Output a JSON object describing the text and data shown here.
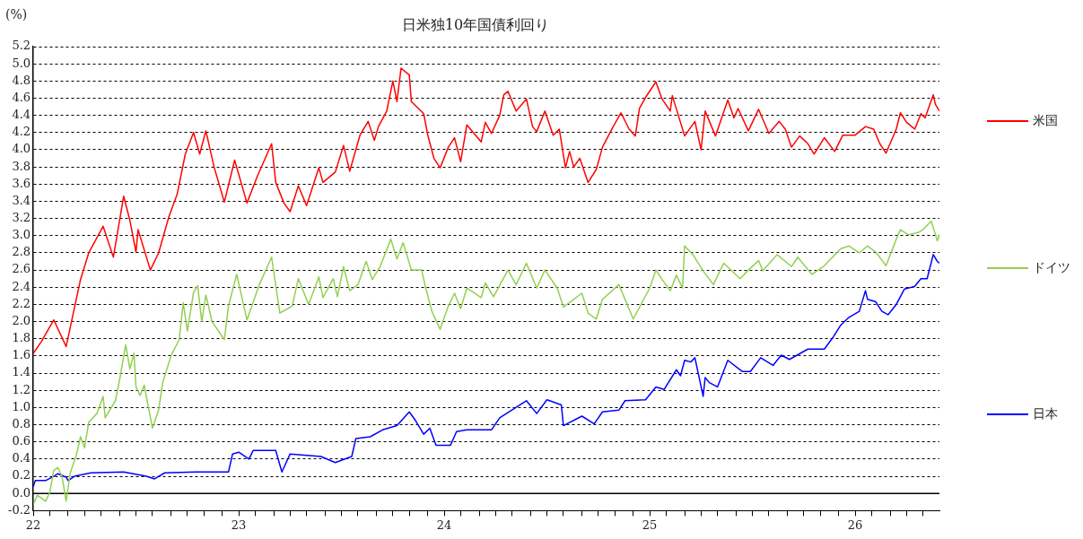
{
  "chart_data": {
    "type": "line",
    "title": "日米独10年国債利回り",
    "ylabel": "(%)",
    "legend": "right",
    "grid": "y",
    "marker": "none",
    "line_style": "solid",
    "xlim": [
      22,
      26.41
    ],
    "xticks": [
      22,
      {
        "value": 22.08,
        "label": null
      },
      {
        "value": 22.17,
        "label": null
      },
      {
        "value": 22.25,
        "label": null
      },
      {
        "value": 22.33,
        "label": null
      },
      {
        "value": 22.42,
        "label": null
      },
      {
        "value": 22.5,
        "label": null
      },
      {
        "value": 22.58,
        "label": null
      },
      {
        "value": 22.67,
        "label": null
      },
      {
        "value": 22.75,
        "label": null
      },
      {
        "value": 22.83,
        "label": null
      },
      {
        "value": 22.92,
        "label": null
      },
      23,
      {
        "value": 23.08,
        "label": null
      },
      {
        "value": 23.17,
        "label": null
      },
      {
        "value": 23.25,
        "label": null
      },
      {
        "value": 23.33,
        "label": null
      },
      {
        "value": 23.42,
        "label": null
      },
      {
        "value": 23.5,
        "label": null
      },
      {
        "value": 23.58,
        "label": null
      },
      {
        "value": 23.67,
        "label": null
      },
      {
        "value": 23.75,
        "label": null
      },
      {
        "value": 23.83,
        "label": null
      },
      {
        "value": 23.92,
        "label": null
      },
      24,
      {
        "value": 24.08,
        "label": null
      },
      {
        "value": 24.17,
        "label": null
      },
      {
        "value": 24.25,
        "label": null
      },
      {
        "value": 24.33,
        "label": null
      },
      {
        "value": 24.42,
        "label": null
      },
      {
        "value": 24.5,
        "label": null
      },
      {
        "value": 24.58,
        "label": null
      },
      {
        "value": 24.67,
        "label": null
      },
      {
        "value": 24.75,
        "label": null
      },
      {
        "value": 24.83,
        "label": null
      },
      {
        "value": 24.92,
        "label": null
      },
      25,
      {
        "value": 25.08,
        "label": null
      },
      {
        "value": 25.17,
        "label": null
      },
      {
        "value": 25.25,
        "label": null
      },
      {
        "value": 25.33,
        "label": null
      },
      {
        "value": 25.42,
        "label": null
      },
      {
        "value": 25.5,
        "label": null
      },
      {
        "value": 25.58,
        "label": null
      },
      {
        "value": 25.67,
        "label": null
      },
      {
        "value": 25.75,
        "label": null
      },
      {
        "value": 25.83,
        "label": null
      },
      {
        "value": 25.92,
        "label": null
      },
      26,
      {
        "value": 26.08,
        "label": null
      },
      {
        "value": 26.17,
        "label": null
      },
      {
        "value": 26.25,
        "label": null
      },
      {
        "value": 26.33,
        "label": null
      }
    ],
    "ylim": [
      -0.2,
      5.2
    ],
    "yticks": [
      -0.2,
      {
        "value": 0,
        "label": "0.0"
      },
      0.2,
      0.4,
      0.6,
      0.8,
      {
        "value": 1,
        "label": "1.0"
      },
      1.2,
      1.4,
      1.6,
      1.8,
      {
        "value": 2,
        "label": "2.0"
      },
      2.2,
      2.4,
      2.6,
      2.8,
      {
        "value": 3,
        "label": "3.0"
      },
      3.2,
      3.4,
      3.6,
      3.8,
      {
        "value": 4,
        "label": "4.0"
      },
      4.2,
      4.4,
      4.6,
      4.8,
      {
        "value": 5,
        "label": "5.0"
      },
      5.2
    ],
    "ref_lines": [
      {
        "axis": "y",
        "value": 0,
        "color": "#000000"
      }
    ],
    "series": [
      {
        "name": "米国",
        "color": "#ff0000",
        "x": [
          22.0,
          22.04,
          22.1,
          22.16,
          22.23,
          22.27,
          22.34,
          22.39,
          22.44,
          22.47,
          22.5,
          22.51,
          22.57,
          22.61,
          22.66,
          22.7,
          22.74,
          22.78,
          22.81,
          22.84,
          22.88,
          22.93,
          22.98,
          23.04,
          23.09,
          23.16,
          23.18,
          23.22,
          23.25,
          23.29,
          23.33,
          23.39,
          23.41,
          23.47,
          23.51,
          23.54,
          23.59,
          23.63,
          23.66,
          23.68,
          23.72,
          23.75,
          23.77,
          23.79,
          23.83,
          23.84,
          23.9,
          23.92,
          23.95,
          23.98,
          24.02,
          24.05,
          24.08,
          24.11,
          24.18,
          24.2,
          24.23,
          24.27,
          24.29,
          24.31,
          24.35,
          24.4,
          24.43,
          24.45,
          24.49,
          24.53,
          24.56,
          24.59,
          24.61,
          24.63,
          24.66,
          24.7,
          24.74,
          24.77,
          24.82,
          24.86,
          24.9,
          24.93,
          24.95,
          24.98,
          25.03,
          25.06,
          25.1,
          25.11,
          25.17,
          25.22,
          25.25,
          25.27,
          25.32,
          25.38,
          25.41,
          25.43,
          25.48,
          25.53,
          25.58,
          25.63,
          25.66,
          25.69,
          25.73,
          25.77,
          25.8,
          25.85,
          25.9,
          25.94,
          26.0,
          26.05,
          26.09,
          26.12,
          26.15,
          26.2,
          26.22,
          26.25,
          26.29,
          26.32,
          26.34,
          26.38,
          26.39,
          26.41
        ],
        "values": [
          1.63,
          1.77,
          2.02,
          1.71,
          2.49,
          2.8,
          3.11,
          2.75,
          3.46,
          3.18,
          2.81,
          3.07,
          2.6,
          2.8,
          3.22,
          3.48,
          3.95,
          4.2,
          3.95,
          4.22,
          3.8,
          3.39,
          3.88,
          3.38,
          3.69,
          4.07,
          3.62,
          3.38,
          3.28,
          3.58,
          3.35,
          3.79,
          3.62,
          3.74,
          4.05,
          3.75,
          4.17,
          4.33,
          4.11,
          4.27,
          4.45,
          4.8,
          4.56,
          4.95,
          4.87,
          4.56,
          4.42,
          4.17,
          3.9,
          3.79,
          4.03,
          4.14,
          3.86,
          4.29,
          4.09,
          4.32,
          4.19,
          4.4,
          4.64,
          4.68,
          4.45,
          4.59,
          4.27,
          4.21,
          4.45,
          4.17,
          4.24,
          3.79,
          3.98,
          3.8,
          3.9,
          3.62,
          3.77,
          4.03,
          4.26,
          4.43,
          4.24,
          4.16,
          4.48,
          4.61,
          4.79,
          4.59,
          4.45,
          4.63,
          4.16,
          4.33,
          4.0,
          4.45,
          4.16,
          4.58,
          4.37,
          4.48,
          4.22,
          4.47,
          4.19,
          4.33,
          4.24,
          4.03,
          4.16,
          4.07,
          3.95,
          4.14,
          3.98,
          4.17,
          4.17,
          4.27,
          4.24,
          4.07,
          3.96,
          4.24,
          4.43,
          4.32,
          4.24,
          4.42,
          4.37,
          4.64,
          4.53,
          4.45
        ]
      },
      {
        "name": "ドイツ",
        "color": "#92d050",
        "x": [
          22.0,
          22.02,
          22.06,
          22.08,
          22.1,
          22.12,
          22.14,
          22.16,
          22.18,
          22.21,
          22.23,
          22.25,
          22.27,
          22.31,
          22.34,
          22.35,
          22.4,
          22.42,
          22.45,
          22.47,
          22.49,
          22.5,
          22.52,
          22.54,
          22.58,
          22.61,
          22.63,
          22.67,
          22.71,
          22.73,
          22.75,
          22.78,
          22.8,
          22.82,
          22.84,
          22.87,
          22.93,
          22.95,
          22.99,
          23.04,
          23.1,
          23.16,
          23.2,
          23.26,
          23.29,
          23.34,
          23.39,
          23.41,
          23.46,
          23.48,
          23.51,
          23.54,
          23.58,
          23.62,
          23.65,
          23.69,
          23.74,
          23.77,
          23.8,
          23.84,
          23.89,
          23.91,
          23.94,
          23.98,
          24.02,
          24.05,
          24.08,
          24.11,
          24.18,
          24.2,
          24.24,
          24.31,
          24.35,
          24.4,
          24.45,
          24.49,
          24.55,
          24.58,
          24.67,
          24.7,
          24.74,
          24.77,
          24.85,
          24.92,
          25.0,
          25.03,
          25.06,
          25.1,
          25.13,
          25.16,
          25.17,
          25.21,
          25.26,
          25.31,
          25.36,
          25.44,
          25.48,
          25.53,
          25.55,
          25.62,
          25.69,
          25.72,
          25.79,
          25.85,
          25.93,
          25.97,
          26.02,
          26.06,
          26.1,
          26.15,
          26.2,
          26.22,
          26.26,
          26.31,
          26.33,
          26.37,
          26.4,
          26.41
        ],
        "values": [
          -0.13,
          -0.02,
          -0.09,
          0.01,
          0.27,
          0.3,
          0.2,
          -0.09,
          0.24,
          0.45,
          0.66,
          0.53,
          0.83,
          0.93,
          1.13,
          0.88,
          1.08,
          1.32,
          1.73,
          1.45,
          1.63,
          1.24,
          1.14,
          1.26,
          0.76,
          0.97,
          1.29,
          1.6,
          1.79,
          2.22,
          1.89,
          2.34,
          2.42,
          2.0,
          2.31,
          2.0,
          1.79,
          2.18,
          2.55,
          2.02,
          2.43,
          2.75,
          2.1,
          2.18,
          2.5,
          2.2,
          2.52,
          2.28,
          2.5,
          2.29,
          2.64,
          2.36,
          2.43,
          2.7,
          2.49,
          2.65,
          2.96,
          2.73,
          2.92,
          2.6,
          2.6,
          2.39,
          2.12,
          1.91,
          2.18,
          2.33,
          2.15,
          2.39,
          2.28,
          2.45,
          2.29,
          2.6,
          2.43,
          2.68,
          2.39,
          2.6,
          2.39,
          2.17,
          2.33,
          2.1,
          2.03,
          2.26,
          2.43,
          2.03,
          2.39,
          2.6,
          2.49,
          2.36,
          2.54,
          2.39,
          2.88,
          2.78,
          2.59,
          2.43,
          2.68,
          2.5,
          2.6,
          2.71,
          2.59,
          2.78,
          2.64,
          2.75,
          2.55,
          2.65,
          2.85,
          2.88,
          2.8,
          2.88,
          2.81,
          2.65,
          2.96,
          3.07,
          3.01,
          3.04,
          3.07,
          3.17,
          2.94,
          3.01
        ]
      },
      {
        "name": "日本",
        "color": "#0000ff",
        "x": [
          22.0,
          22.01,
          22.06,
          22.1,
          22.12,
          22.16,
          22.17,
          22.2,
          22.28,
          22.44,
          22.55,
          22.59,
          22.64,
          22.79,
          22.95,
          22.97,
          23.0,
          23.05,
          23.07,
          23.18,
          23.21,
          23.25,
          23.4,
          23.47,
          23.55,
          23.57,
          23.64,
          23.7,
          23.77,
          23.83,
          23.86,
          23.9,
          23.93,
          23.96,
          24.03,
          24.06,
          24.11,
          24.23,
          24.27,
          24.4,
          24.45,
          24.5,
          24.57,
          24.58,
          24.67,
          24.73,
          24.77,
          24.85,
          24.88,
          24.98,
          25.03,
          25.07,
          25.13,
          25.15,
          25.17,
          25.2,
          25.22,
          25.26,
          25.27,
          25.29,
          25.33,
          25.38,
          25.45,
          25.49,
          25.54,
          25.6,
          25.64,
          25.68,
          25.77,
          25.85,
          25.89,
          25.93,
          25.97,
          26.02,
          26.05,
          26.06,
          26.1,
          26.13,
          26.16,
          26.2,
          26.24,
          26.29,
          26.32,
          26.35,
          26.38,
          26.4,
          26.41
        ],
        "values": [
          0.08,
          0.15,
          0.15,
          0.2,
          0.23,
          0.19,
          0.15,
          0.2,
          0.24,
          0.25,
          0.2,
          0.17,
          0.24,
          0.25,
          0.25,
          0.46,
          0.48,
          0.4,
          0.5,
          0.5,
          0.25,
          0.46,
          0.43,
          0.36,
          0.43,
          0.64,
          0.66,
          0.74,
          0.79,
          0.95,
          0.85,
          0.69,
          0.76,
          0.56,
          0.56,
          0.72,
          0.74,
          0.74,
          0.88,
          1.08,
          0.93,
          1.09,
          1.03,
          0.79,
          0.9,
          0.81,
          0.95,
          0.97,
          1.08,
          1.09,
          1.24,
          1.21,
          1.44,
          1.37,
          1.55,
          1.53,
          1.58,
          1.13,
          1.35,
          1.29,
          1.24,
          1.55,
          1.42,
          1.42,
          1.58,
          1.49,
          1.61,
          1.56,
          1.68,
          1.68,
          1.81,
          1.96,
          2.05,
          2.12,
          2.36,
          2.26,
          2.23,
          2.12,
          2.08,
          2.2,
          2.38,
          2.41,
          2.5,
          2.5,
          2.78,
          2.7,
          2.68
        ]
      }
    ]
  }
}
